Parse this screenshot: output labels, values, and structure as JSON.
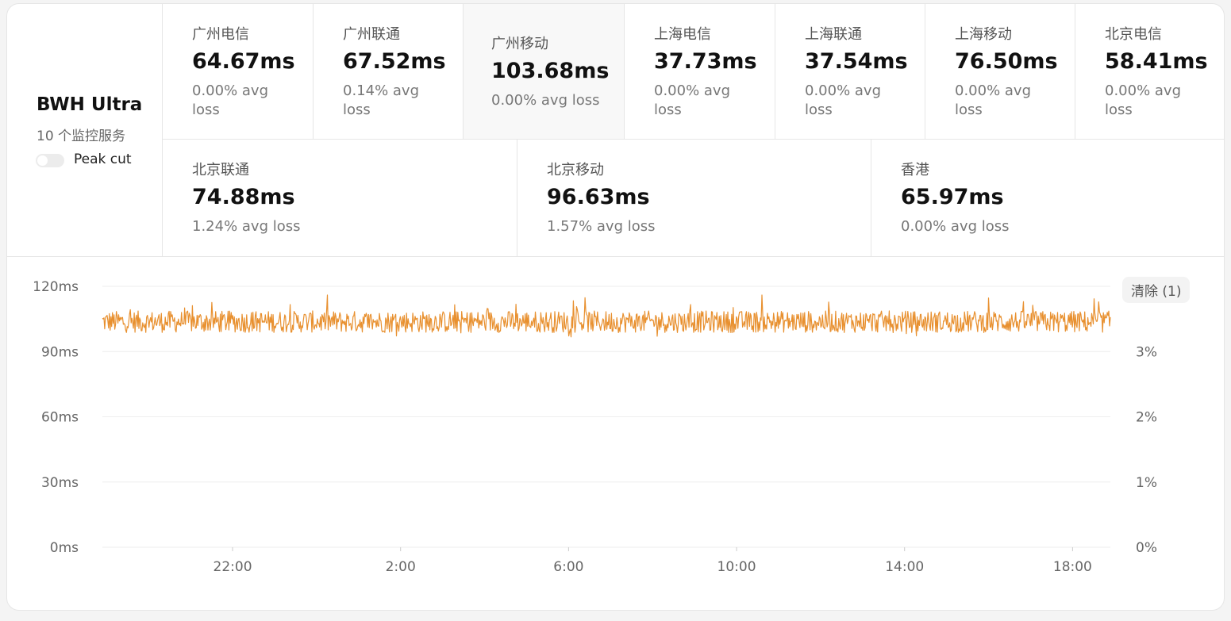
{
  "server": {
    "name": "BWH Ultra",
    "subtitle": "10 个监控服务",
    "peak_cut_label": "Peak cut",
    "peak_cut_enabled": false
  },
  "stats": [
    {
      "label": "广州电信",
      "value": "64.67ms",
      "loss": "0.00% avg loss",
      "active": false
    },
    {
      "label": "广州联通",
      "value": "67.52ms",
      "loss": "0.14% avg loss",
      "active": false
    },
    {
      "label": "广州移动",
      "value": "103.68ms",
      "loss": "0.00% avg loss",
      "active": true
    },
    {
      "label": "上海电信",
      "value": "37.73ms",
      "loss": "0.00% avg loss",
      "active": false
    },
    {
      "label": "上海联通",
      "value": "37.54ms",
      "loss": "0.00% avg loss",
      "active": false
    },
    {
      "label": "上海移动",
      "value": "76.50ms",
      "loss": "0.00% avg loss",
      "active": false
    },
    {
      "label": "北京电信",
      "value": "58.41ms",
      "loss": "0.00% avg loss",
      "active": false
    },
    {
      "label": "北京联通",
      "value": "74.88ms",
      "loss": "1.24% avg loss",
      "active": false
    },
    {
      "label": "北京移动",
      "value": "96.63ms",
      "loss": "1.57% avg loss",
      "active": false
    },
    {
      "label": "香港",
      "value": "65.97ms",
      "loss": "0.00% avg loss",
      "active": false
    }
  ],
  "clear_button": "清除 (1)",
  "colors": {
    "series": "#e8902f",
    "grid": "#eeeeee",
    "axis_text": "#666666"
  },
  "chart_data": {
    "type": "line",
    "series_name": "广州移动",
    "y_left": {
      "ticks": [
        0,
        30,
        60,
        90,
        120
      ],
      "tick_labels": [
        "0ms",
        "30ms",
        "60ms",
        "90ms",
        "120ms"
      ],
      "range": [
        0,
        120
      ]
    },
    "y_right": {
      "ticks": [
        0,
        1,
        2,
        3
      ],
      "tick_labels": [
        "0%",
        "1%",
        "2%",
        "3%"
      ],
      "range": [
        0,
        4
      ]
    },
    "x": {
      "tick_labels": [
        "22:00",
        "2:00",
        "6:00",
        "10:00",
        "14:00",
        "18:00"
      ],
      "tick_hours": [
        22,
        26,
        30,
        34,
        38,
        42
      ],
      "range_hours": [
        18.9,
        42.9
      ]
    },
    "latency_mean": 103.7,
    "latency_min": 93,
    "latency_max": 116,
    "grid": true
  }
}
